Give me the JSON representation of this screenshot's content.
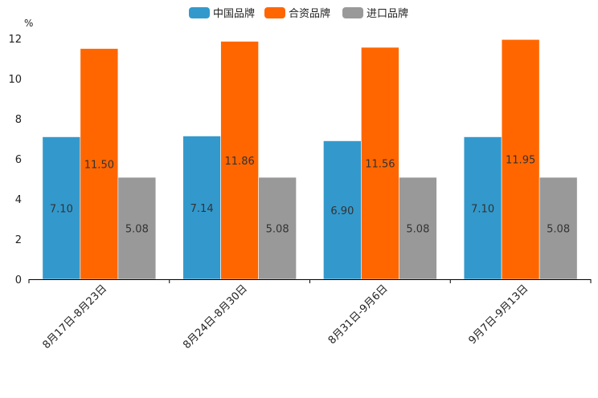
{
  "chart_data": {
    "type": "bar",
    "title": "",
    "ylabel": "%",
    "xlabel": "",
    "ylim": [
      0,
      12
    ],
    "yticks": [
      0,
      2,
      4,
      6,
      8,
      10,
      12
    ],
    "categories": [
      "8月17日-8月23日",
      "8月24日-8月30日",
      "8月31日-9月6日",
      "9月7日-9月13日"
    ],
    "series": [
      {
        "name": "中国品牌",
        "color": "#3399cc",
        "values": [
          7.1,
          7.14,
          6.9,
          7.1
        ],
        "labels": [
          "7.10",
          "7.14",
          "6.90",
          "7.10"
        ]
      },
      {
        "name": "合资品牌",
        "color": "#ff6600",
        "values": [
          11.5,
          11.86,
          11.56,
          11.95
        ],
        "labels": [
          "11.50",
          "11.86",
          "11.56",
          "11.95"
        ]
      },
      {
        "name": "进口品牌",
        "color": "#999999",
        "values": [
          5.08,
          5.08,
          5.08,
          5.08
        ],
        "labels": [
          "5.08",
          "5.08",
          "5.08",
          "5.08"
        ]
      }
    ],
    "legend_position": "top-center",
    "grid": false
  }
}
